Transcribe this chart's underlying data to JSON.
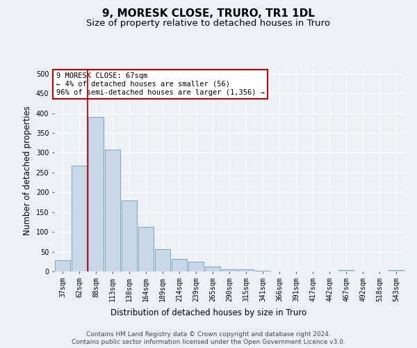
{
  "title": "9, MORESK CLOSE, TRURO, TR1 1DL",
  "subtitle": "Size of property relative to detached houses in Truro",
  "xlabel": "Distribution of detached houses by size in Truro",
  "ylabel": "Number of detached properties",
  "categories": [
    "37sqm",
    "62sqm",
    "88sqm",
    "113sqm",
    "138sqm",
    "164sqm",
    "189sqm",
    "214sqm",
    "239sqm",
    "265sqm",
    "290sqm",
    "315sqm",
    "341sqm",
    "366sqm",
    "391sqm",
    "417sqm",
    "442sqm",
    "467sqm",
    "492sqm",
    "518sqm",
    "543sqm"
  ],
  "values": [
    28,
    267,
    391,
    308,
    179,
    113,
    57,
    32,
    24,
    13,
    6,
    5,
    1,
    0,
    0,
    0,
    0,
    4,
    0,
    0,
    4
  ],
  "bar_color": "#c8d8e8",
  "bar_edge_color": "#6699bb",
  "vline_x": 1.5,
  "vline_color": "#cc0000",
  "annotation_text": "9 MORESK CLOSE: 67sqm\n← 4% of detached houses are smaller (56)\n96% of semi-detached houses are larger (1,356) →",
  "annotation_box_facecolor": "#ffffff",
  "annotation_box_edgecolor": "#cc0000",
  "ylim": [
    0,
    510
  ],
  "yticks": [
    0,
    50,
    100,
    150,
    200,
    250,
    300,
    350,
    400,
    450,
    500
  ],
  "footer_line1": "Contains HM Land Registry data © Crown copyright and database right 2024.",
  "footer_line2": "Contains public sector information licensed under the Open Government Licence v3.0.",
  "bg_color": "#edf1f5",
  "grid_color": "#ffffff",
  "title_fontsize": 11,
  "subtitle_fontsize": 9.5,
  "ylabel_fontsize": 8.5,
  "xlabel_fontsize": 8.5,
  "tick_fontsize": 7,
  "footer_fontsize": 6.5,
  "annot_fontsize": 7.5
}
